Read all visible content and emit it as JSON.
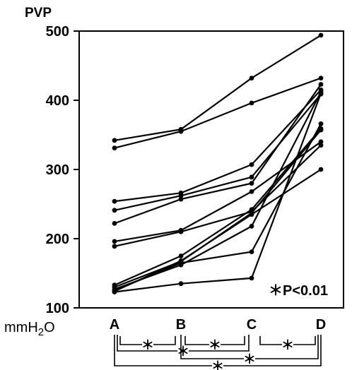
{
  "chart_data": {
    "type": "line",
    "ylabel": "PVP",
    "unit_label": "mmH2O",
    "categories": [
      "A",
      "B",
      "C",
      "D"
    ],
    "ylim": [
      100,
      500
    ],
    "yticks": [
      100,
      200,
      300,
      400,
      500
    ],
    "grid": false,
    "legend": "none",
    "annotation": "＊P<0.01",
    "series": [
      {
        "values": [
          342,
          358,
          432,
          494
        ]
      },
      {
        "values": [
          331,
          355,
          396,
          432
        ]
      },
      {
        "values": [
          254,
          266,
          307,
          415
        ]
      },
      {
        "values": [
          241,
          262,
          289,
          409
        ]
      },
      {
        "values": [
          222,
          257,
          280,
          423
        ]
      },
      {
        "values": [
          196,
          212,
          268,
          340
        ]
      },
      {
        "values": [
          189,
          210,
          239,
          335
        ]
      },
      {
        "values": [
          133,
          175,
          242,
          359
        ]
      },
      {
        "values": [
          130,
          167,
          237,
          357
        ]
      },
      {
        "values": [
          127,
          162,
          218,
          412
        ]
      },
      {
        "values": [
          125,
          165,
          181,
          366
        ]
      },
      {
        "values": [
          123,
          135,
          143,
          410
        ]
      },
      {
        "values": [
          124,
          168,
          235,
          300
        ]
      }
    ],
    "significance_brackets": [
      {
        "from": "A",
        "to": "B",
        "label": "＊"
      },
      {
        "from": "B",
        "to": "C",
        "label": "＊"
      },
      {
        "from": "C",
        "to": "D",
        "label": "＊"
      },
      {
        "from": "A",
        "to": "C",
        "label": "＊"
      },
      {
        "from": "B",
        "to": "D",
        "label": "＊"
      },
      {
        "from": "A",
        "to": "D",
        "label": "＊"
      }
    ]
  }
}
